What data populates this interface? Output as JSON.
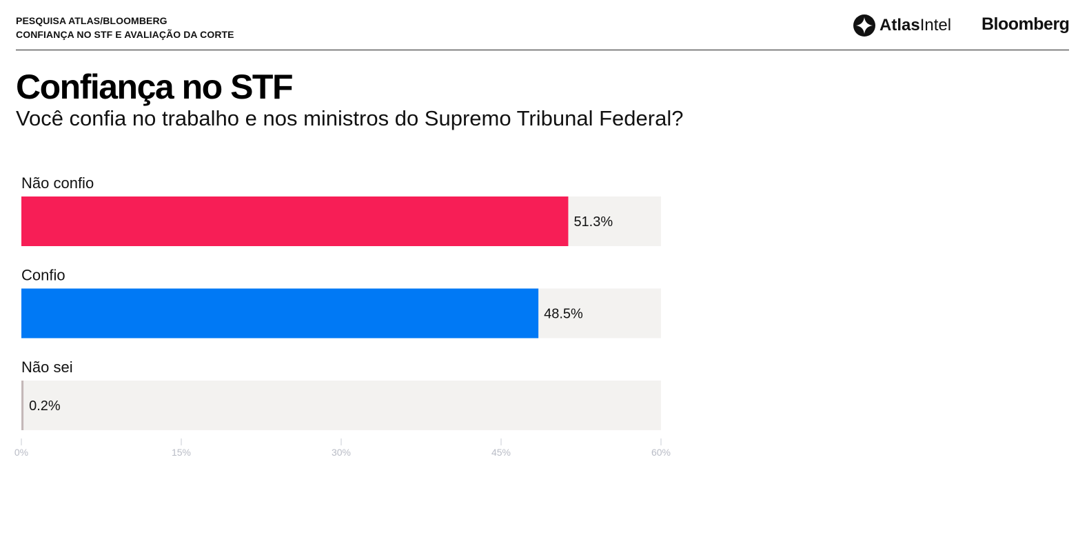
{
  "header": {
    "kicker_line1": "PESQUISA ATLAS/BLOOMBERG",
    "kicker_line2": "CONFIANÇA NO STF E AVALIAÇÃO DA CORTE",
    "brand_atlas_bold": "Atlas",
    "brand_atlas_light": "Intel",
    "brand_bloomberg": "Bloomberg"
  },
  "chart_data": {
    "type": "bar",
    "orientation": "horizontal",
    "title": "Confiança no STF",
    "subtitle": "Você confia no trabalho e nos ministros do Supremo Tribunal Federal?",
    "categories": [
      "Não confio",
      "Confio",
      "Não sei"
    ],
    "values": [
      51.3,
      48.5,
      0.2
    ],
    "value_labels": [
      "51.3%",
      "48.5%",
      "0.2%"
    ],
    "colors": [
      "#f71e56",
      "#0079f5",
      "#c4b8b8"
    ],
    "track_color": "#f3f2f0",
    "xlim": [
      0,
      60
    ],
    "ticks": [
      0,
      15,
      30,
      45,
      60
    ],
    "tick_labels": [
      "0%",
      "15%",
      "30%",
      "45%",
      "60%"
    ],
    "grid": false,
    "legend": "none"
  }
}
